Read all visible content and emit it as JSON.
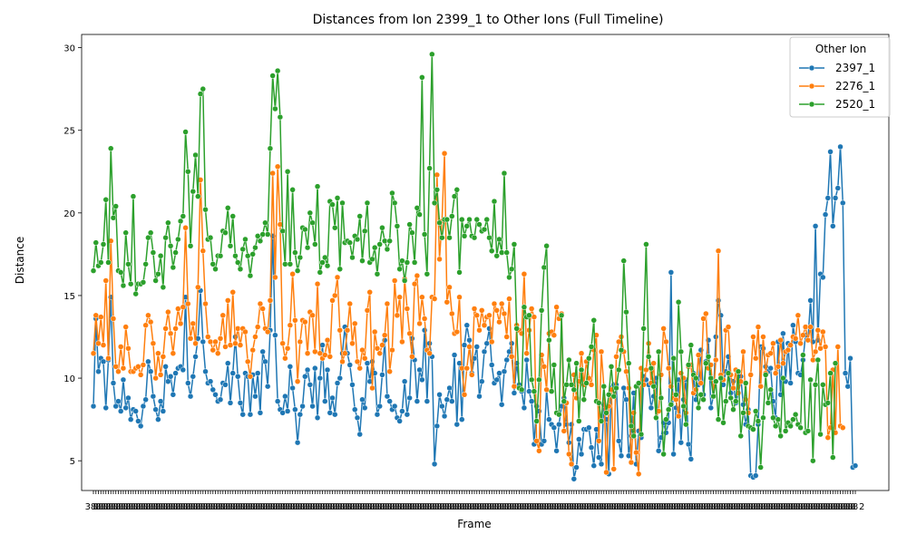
{
  "chart_data": {
    "type": "line",
    "title": "Distances from Ion 2399_1 to Other Ions (Full Timeline)",
    "xlabel": "Frame",
    "ylabel": "Distance",
    "ylim": [
      3.2,
      30.8
    ],
    "yticks": [
      5,
      10,
      15,
      20,
      25,
      30
    ],
    "x_tick_labels_visible": [
      "3",
      "2"
    ],
    "legend": {
      "title": "Other Ion",
      "placement": "top-right"
    },
    "grid": false,
    "marker": "circle",
    "series": [
      {
        "name": "2397_1",
        "color": "#1f77b4",
        "values": [
          8.3,
          13.6,
          10.4,
          11.2,
          11.0,
          8.2,
          11.1,
          14.9,
          9.7,
          8.3,
          8.6,
          8.0,
          9.9,
          8.2,
          8.8,
          7.5,
          8.1,
          8.0,
          7.4,
          7.1,
          8.3,
          8.7,
          11.0,
          10.4,
          8.9,
          8.1,
          7.5,
          8.6,
          8.0,
          10.7,
          9.8,
          10.1,
          9.0,
          10.3,
          10.6,
          10.7,
          10.5,
          14.9,
          9.7,
          8.9,
          10.1,
          11.3,
          12.4,
          15.3,
          12.2,
          10.4,
          9.7,
          9.8,
          9.3,
          9.0,
          8.6,
          8.7,
          9.7,
          9.6,
          10.9,
          8.5,
          10.3,
          12.5,
          10.1,
          8.5,
          7.8,
          10.3,
          10.1,
          7.8,
          10.2,
          8.9,
          10.3,
          7.9,
          11.6,
          11.0,
          9.5,
          12.9,
          18.6,
          12.6,
          8.6,
          8.1,
          7.9,
          8.9,
          8.0,
          10.7,
          9.4,
          8.1,
          6.1,
          7.8,
          8.3,
          10.1,
          10.5,
          9.6,
          8.3,
          10.6,
          7.6,
          10.0,
          12.0,
          8.6,
          10.5,
          7.9,
          8.8,
          7.8,
          9.7,
          10.0,
          11.5,
          13.1,
          11.5,
          10.8,
          9.6,
          8.1,
          7.6,
          6.6,
          8.7,
          8.2,
          10.9,
          9.8,
          11.0,
          10.3,
          7.8,
          8.3,
          10.2,
          12.3,
          8.9,
          8.6,
          8.1,
          8.3,
          7.6,
          7.4,
          8.0,
          9.8,
          7.8,
          8.8,
          12.4,
          11.1,
          8.6,
          10.5,
          9.9,
          12.9,
          8.6,
          12.1,
          11.3,
          4.8,
          7.1,
          9.0,
          8.3,
          7.7,
          8.7,
          9.4,
          8.6,
          11.4,
          7.2,
          10.9,
          7.5,
          12.0,
          13.2,
          12.3,
          10.3,
          11.2,
          11.9,
          8.9,
          9.8,
          11.6,
          12.1,
          13.0,
          10.8,
          9.7,
          9.9,
          10.3,
          8.4,
          10.4,
          11.1,
          11.6,
          12.1,
          9.1,
          10.9,
          9.6,
          9.2,
          8.2,
          11.1,
          9.2,
          8.6,
          6.0,
          8.3,
          8.0,
          6.0,
          6.2,
          9.3,
          7.5,
          7.2,
          7.0,
          5.6,
          7.2,
          8.3,
          8.8,
          7.2,
          6.1,
          7.2,
          3.9,
          4.6,
          6.3,
          5.4,
          6.9,
          6.9,
          7.0,
          5.8,
          4.7,
          6.9,
          5.2,
          4.8,
          8.4,
          7.5,
          4.2,
          9.4,
          9.6,
          9.6,
          6.2,
          5.3,
          9.4,
          8.7,
          5.3,
          6.5,
          9.1,
          4.8,
          6.8,
          6.4,
          10.1,
          9.9,
          9.6,
          8.2,
          8.9,
          10.0,
          5.6,
          6.4,
          7.3,
          6.7,
          7.3,
          16.4,
          5.4,
          8.2,
          9.9,
          6.1,
          8.7,
          9.9,
          6.0,
          5.1,
          10.3,
          8.7,
          9.6,
          11.7,
          9.0,
          11.0,
          12.3,
          8.2,
          8.9,
          12.5,
          14.7,
          13.8,
          9.6,
          10.4,
          11.3,
          9.1,
          9.8,
          8.5,
          9.1,
          10.1,
          8.4,
          7.2,
          8.1,
          4.1,
          4.0,
          4.1,
          7.2,
          11.9,
          11.8,
          10.7,
          10.4,
          10.6,
          8.6,
          7.6,
          12.2,
          9.0,
          12.7,
          9.8,
          12.1,
          9.7,
          13.2,
          12.2,
          10.3,
          10.2,
          11.1,
          12.6,
          12.3,
          14.7,
          12.2,
          19.2,
          12.3,
          16.3,
          16.1,
          19.9,
          20.9,
          23.7,
          19.2,
          20.9,
          21.5,
          24.0,
          20.6,
          10.3,
          9.5,
          11.2,
          4.6,
          4.7
        ]
      },
      {
        "name": "2276_1",
        "color": "#ff7f0e",
        "values": [
          11.5,
          13.8,
          12.1,
          13.7,
          12.0,
          15.9,
          11.2,
          18.3,
          13.6,
          10.7,
          10.4,
          11.9,
          10.6,
          13.1,
          11.8,
          10.4,
          10.4,
          10.6,
          10.7,
          10.2,
          10.8,
          13.2,
          13.8,
          13.4,
          12.1,
          10.0,
          11.5,
          10.2,
          11.3,
          13.0,
          14.0,
          12.7,
          11.5,
          13.0,
          14.2,
          13.3,
          14.3,
          19.1,
          14.5,
          12.4,
          13.3,
          12.1,
          15.5,
          22.0,
          17.7,
          14.5,
          12.5,
          12.2,
          11.7,
          12.2,
          11.5,
          12.4,
          13.8,
          11.9,
          14.7,
          12.0,
          15.2,
          12.1,
          13.0,
          12.0,
          13.0,
          12.8,
          11.0,
          10.1,
          11.7,
          12.5,
          13.1,
          14.5,
          14.2,
          13.0,
          12.8,
          14.7,
          22.4,
          16.1,
          22.8,
          19.3,
          12.1,
          11.2,
          11.8,
          13.2,
          16.3,
          13.5,
          9.8,
          12.2,
          13.5,
          13.4,
          11.5,
          14.0,
          13.8,
          11.6,
          15.7,
          11.5,
          11.2,
          11.4,
          12.3,
          11.3,
          14.7,
          15.0,
          16.1,
          12.9,
          11.0,
          11.5,
          12.9,
          14.5,
          12.1,
          13.3,
          11.0,
          10.6,
          11.7,
          11.2,
          14.1,
          15.2,
          9.4,
          12.8,
          11.8,
          11.5,
          12.0,
          12.6,
          14.5,
          10.4,
          11.7,
          15.9,
          13.8,
          14.9,
          12.2,
          16.0,
          14.2,
          12.7,
          11.3,
          15.7,
          16.2,
          13.3,
          14.9,
          13.6,
          11.7,
          11.5,
          14.9,
          14.8,
          22.3,
          17.2,
          19.5,
          23.6,
          14.6,
          15.5,
          13.9,
          12.7,
          12.8,
          14.9,
          10.6,
          9.0,
          10.6,
          11.9,
          10.2,
          14.2,
          13.8,
          12.9,
          14.1,
          13.2,
          13.7,
          13.8,
          12.2,
          14.5,
          14.1,
          13.4,
          14.5,
          13.9,
          12.5,
          14.8,
          11.3,
          9.5,
          13.2,
          12.9,
          12.7,
          16.3,
          11.5,
          12.9,
          14.2,
          13.7,
          6.2,
          5.6,
          11.4,
          10.7,
          9.3,
          12.7,
          12.8,
          12.6,
          14.3,
          13.6,
          13.9,
          6.8,
          8.5,
          5.4,
          4.8,
          10.2,
          8.8,
          9.8,
          11.5,
          9.6,
          11.0,
          10.0,
          9.6,
          11.7,
          12.6,
          6.2,
          11.6,
          9.5,
          4.3,
          8.3,
          9.3,
          4.5,
          11.3,
          12.2,
          12.5,
          11.6,
          10.4,
          9.4,
          4.9,
          7.9,
          5.5,
          4.2,
          10.6,
          9.6,
          10.5,
          12.1,
          9.7,
          10.9,
          7.6,
          8.0,
          10.2,
          13.0,
          12.2,
          10.6,
          9.5,
          8.8,
          8.7,
          7.7,
          10.3,
          10.0,
          7.9,
          10.7,
          10.8,
          9.1,
          9.3,
          11.4,
          9.7,
          13.6,
          13.9,
          10.6,
          10.8,
          8.9,
          11.1,
          17.7,
          10.2,
          9.9,
          12.9,
          13.1,
          10.2,
          9.4,
          10.5,
          9.1,
          9.8,
          11.6,
          8.7,
          7.9,
          10.2,
          12.5,
          11.2,
          13.1,
          9.5,
          12.5,
          10.3,
          11.4,
          11.5,
          12.1,
          10.3,
          10.7,
          12.3,
          10.9,
          11.6,
          11.7,
          12.0,
          12.5,
          12.4,
          13.8,
          12.1,
          12.6,
          13.1,
          12.3,
          13.1,
          11.1,
          11.6,
          12.9,
          11.8,
          12.8,
          11.9,
          6.4,
          7.0,
          10.5,
          6.7,
          11.9,
          7.1,
          7.0
        ]
      },
      {
        "name": "2520_1",
        "color": "#2ca02c",
        "values": [
          16.5,
          18.2,
          16.8,
          17.0,
          18.1,
          20.8,
          17.0,
          23.9,
          19.7,
          20.4,
          16.5,
          16.4,
          15.6,
          18.8,
          16.9,
          15.7,
          21.0,
          15.1,
          15.7,
          15.7,
          15.8,
          16.9,
          18.5,
          18.8,
          17.6,
          15.9,
          16.3,
          17.4,
          15.5,
          18.5,
          19.4,
          18.0,
          16.7,
          17.6,
          18.4,
          19.5,
          19.8,
          24.9,
          22.5,
          18.0,
          21.3,
          23.5,
          21.0,
          27.2,
          27.5,
          20.2,
          18.4,
          18.5,
          16.9,
          16.6,
          17.4,
          17.4,
          18.9,
          18.8,
          20.3,
          18.0,
          19.8,
          17.4,
          17.0,
          16.6,
          17.8,
          18.4,
          17.4,
          16.2,
          17.5,
          17.9,
          18.6,
          18.3,
          18.7,
          19.4,
          18.7,
          23.9,
          28.3,
          26.3,
          28.6,
          25.8,
          18.9,
          16.9,
          22.5,
          16.9,
          21.4,
          17.6,
          16.5,
          17.3,
          19.1,
          19.0,
          17.9,
          20.0,
          19.4,
          18.1,
          21.6,
          16.4,
          17.0,
          17.3,
          16.8,
          20.7,
          20.5,
          19.1,
          20.9,
          16.6,
          20.6,
          18.2,
          18.3,
          18.2,
          17.3,
          18.6,
          18.4,
          19.8,
          17.1,
          18.9,
          20.6,
          17.0,
          17.2,
          17.9,
          16.3,
          18.1,
          19.1,
          18.3,
          17.8,
          18.3,
          21.2,
          20.6,
          19.2,
          16.6,
          17.1,
          15.9,
          17.0,
          19.3,
          18.8,
          17.0,
          20.3,
          19.9,
          28.2,
          18.7,
          16.3,
          22.7,
          29.6,
          20.6,
          21.4,
          19.4,
          18.5,
          19.6,
          19.6,
          18.5,
          19.8,
          21.0,
          21.4,
          16.4,
          19.6,
          18.6,
          19.2,
          19.6,
          18.6,
          18.5,
          19.6,
          19.3,
          18.9,
          19.0,
          19.6,
          18.5,
          17.7,
          20.7,
          17.4,
          18.4,
          17.6,
          22.4,
          17.6,
          16.1,
          16.6,
          18.1,
          13.0,
          9.4,
          9.3,
          14.3,
          13.7,
          13.8,
          9.9,
          9.2,
          7.4,
          9.9,
          14.1,
          16.7,
          18.0,
          12.3,
          9.2,
          10.8,
          7.9,
          7.8,
          13.8,
          8.6,
          9.6,
          11.1,
          9.6,
          9.3,
          10.9,
          7.4,
          10.5,
          8.7,
          9.7,
          11.2,
          11.9,
          13.5,
          8.6,
          8.5,
          7.4,
          9.5,
          7.9,
          9.0,
          10.7,
          8.9,
          9.4,
          10.5,
          11.7,
          17.1,
          14.0,
          10.9,
          7.1,
          6.5,
          9.5,
          9.7,
          6.6,
          13.0,
          18.1,
          11.3,
          10.6,
          9.5,
          7.6,
          11.6,
          8.8,
          5.4,
          7.5,
          8.1,
          8.4,
          11.2,
          9.0,
          14.6,
          11.6,
          8.3,
          7.2,
          10.8,
          12.0,
          10.2,
          10.0,
          8.2,
          9.0,
          8.7,
          10.9,
          11.3,
          10.0,
          8.9,
          9.8,
          7.5,
          10.0,
          7.3,
          8.6,
          10.3,
          8.8,
          8.1,
          8.6,
          10.4,
          6.5,
          7.9,
          9.7,
          7.1,
          7.0,
          6.9,
          8.0,
          7.4,
          4.6,
          7.6,
          10.2,
          8.5,
          9.3,
          7.6,
          7.1,
          7.5,
          6.5,
          10.0,
          6.8,
          7.3,
          7.1,
          7.5,
          7.8,
          7.2,
          7.0,
          11.4,
          6.7,
          6.8,
          9.9,
          5.0,
          9.6,
          11.1,
          6.6,
          9.6,
          8.4,
          8.5,
          10.3,
          5.2,
          10.9
        ]
      }
    ]
  }
}
